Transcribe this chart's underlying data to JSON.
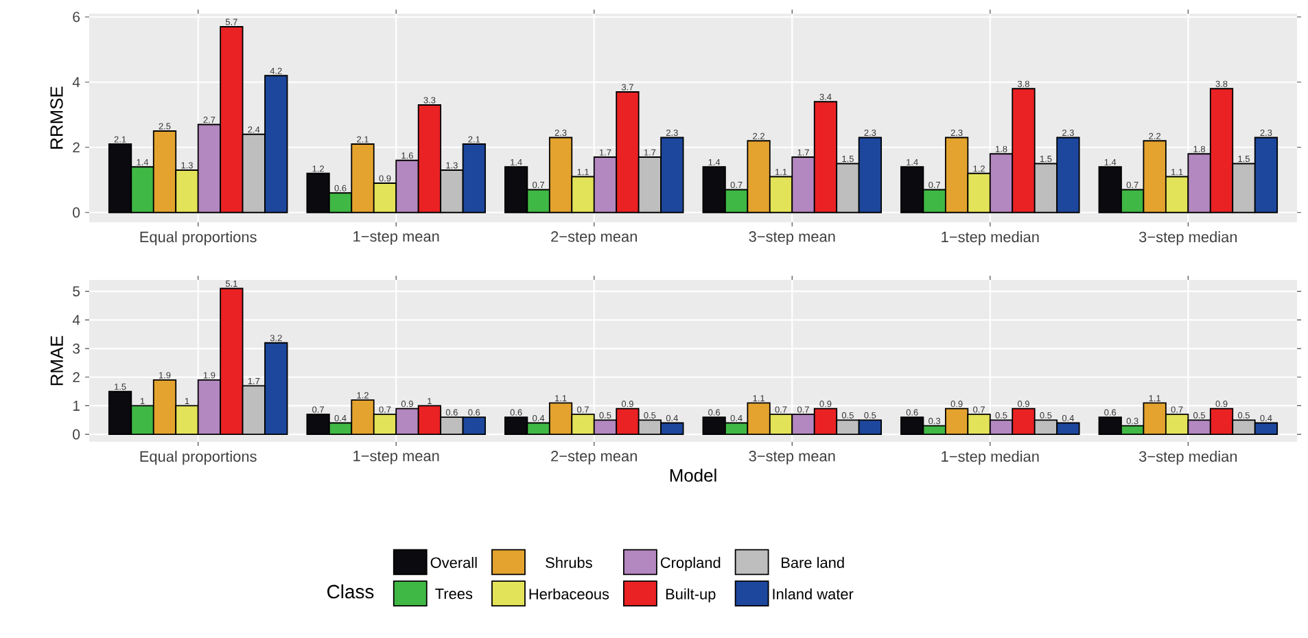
{
  "chart_data": [
    {
      "type": "bar",
      "ylabel": "RRMSE",
      "categories": [
        "Equal proportions",
        "1−step mean",
        "2−step mean",
        "3−step mean",
        "1−step median",
        "3−step median"
      ],
      "ylim": [
        -0.3,
        6.1
      ],
      "yticks": [
        0,
        2,
        4,
        6
      ],
      "grid": true,
      "data_labels": true,
      "series": [
        {
          "color": "#0a0a0f",
          "values": [
            2.1,
            1.2,
            1.4,
            1.4,
            1.4,
            1.4
          ]
        },
        {
          "color": "#40b845",
          "values": [
            1.4,
            0.6,
            0.7,
            0.7,
            0.7,
            0.7
          ]
        },
        {
          "color": "#e3a32e",
          "values": [
            2.5,
            2.1,
            2.3,
            2.2,
            2.3,
            2.2
          ]
        },
        {
          "color": "#e3e35a",
          "values": [
            1.3,
            0.9,
            1.1,
            1.1,
            1.2,
            1.1
          ]
        },
        {
          "color": "#b387bf",
          "values": [
            2.7,
            1.6,
            1.7,
            1.7,
            1.8,
            1.8
          ]
        },
        {
          "color": "#ea2224",
          "values": [
            5.7,
            3.3,
            3.7,
            3.4,
            3.8,
            3.8
          ]
        },
        {
          "color": "#bebebe",
          "values": [
            2.4,
            1.3,
            1.7,
            1.5,
            1.5,
            1.5
          ]
        },
        {
          "color": "#1d479c",
          "values": [
            4.2,
            2.1,
            2.3,
            2.3,
            2.3,
            2.3
          ]
        }
      ]
    },
    {
      "type": "bar",
      "xlabel": "Model",
      "ylabel": "RMAE",
      "categories": [
        "Equal proportions",
        "1−step mean",
        "2−step mean",
        "3−step mean",
        "1−step median",
        "3−step median"
      ],
      "ylim": [
        -0.26,
        5.4
      ],
      "yticks": [
        0,
        1,
        2,
        3,
        4,
        5
      ],
      "grid": true,
      "data_labels": true,
      "legend": "bottom",
      "legend_title": "Class",
      "series": [
        {
          "name": "Overall",
          "color": "#0a0a0f",
          "values": [
            1.5,
            0.7,
            0.6,
            0.6,
            0.6,
            0.6
          ]
        },
        {
          "name": "Trees",
          "color": "#40b845",
          "values": [
            1,
            0.4,
            0.4,
            0.4,
            0.3,
            0.3
          ]
        },
        {
          "name": "Shrubs",
          "color": "#e3a32e",
          "values": [
            1.9,
            1.2,
            1.1,
            1.1,
            0.9,
            1.1
          ]
        },
        {
          "name": "Herbaceous",
          "color": "#e3e35a",
          "values": [
            1,
            0.7,
            0.7,
            0.7,
            0.7,
            0.7
          ]
        },
        {
          "name": "Cropland",
          "color": "#b387bf",
          "values": [
            1.9,
            0.9,
            0.5,
            0.7,
            0.5,
            0.5
          ]
        },
        {
          "name": "Built-up",
          "color": "#ea2224",
          "values": [
            5.1,
            1,
            0.9,
            0.9,
            0.9,
            0.9
          ]
        },
        {
          "name": "Bare land",
          "color": "#bebebe",
          "values": [
            1.7,
            0.6,
            0.5,
            0.5,
            0.5,
            0.5
          ]
        },
        {
          "name": "Inland water",
          "color": "#1d479c",
          "values": [
            3.2,
            0.6,
            0.4,
            0.5,
            0.4,
            0.4
          ]
        }
      ]
    }
  ]
}
